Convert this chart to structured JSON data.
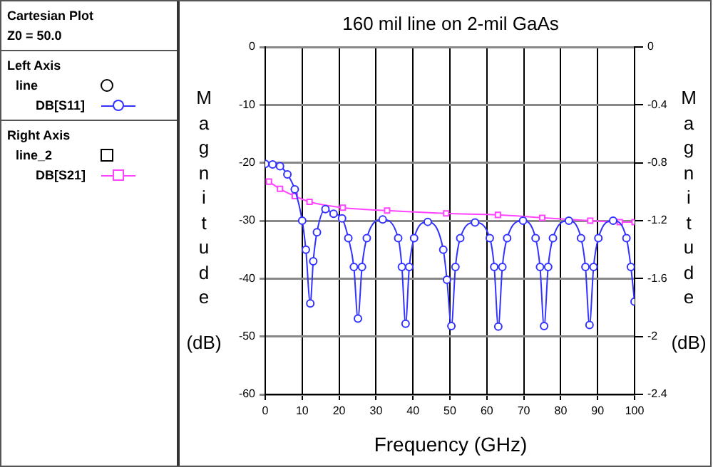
{
  "chart_data": {
    "type": "line",
    "title": "160 mil line on 2-mil GaAs",
    "xlabel": "Frequency (GHz)",
    "ylabel": "Magnitude (dB)",
    "y2label": "Magnitude (dB)",
    "annotations": [
      "Cartesian Plot",
      "Z0 = 50.0",
      "Left Axis",
      "line",
      "Right Axis",
      "line_2"
    ],
    "xlim": [
      0,
      100
    ],
    "xticks": [
      0,
      10,
      20,
      30,
      40,
      50,
      60,
      70,
      80,
      90,
      100
    ],
    "ylim": [
      -60,
      0
    ],
    "yticks": [
      0,
      -10,
      -20,
      -30,
      -40,
      -50,
      -60
    ],
    "y2lim": [
      -2.4,
      0
    ],
    "y2ticks": [
      0,
      -0.4,
      -0.8,
      -1.2,
      -1.6,
      -2,
      -2.4
    ],
    "grid": true,
    "legend": "left",
    "series": [
      {
        "name": "DB[S11]",
        "color": "#3333ff",
        "marker": "circle",
        "x": [
          0,
          2,
          4,
          6,
          8,
          10,
          11,
          12.2,
          13,
          14,
          16.3,
          18.5,
          20.8,
          22.5,
          24,
          25.1,
          26.2,
          27.5,
          31.8,
          36,
          37,
          38,
          39,
          40.3,
          44,
          48.2,
          49.2,
          50.4,
          51.5,
          52.8,
          56.8,
          60.8,
          62,
          63.1,
          64.2,
          65.5,
          69.8,
          73.2,
          74.4,
          75.5,
          76.6,
          77.9,
          82.2,
          85.5,
          86.7,
          87.8,
          88.9,
          90.2,
          94.2,
          97.8,
          99,
          100
        ],
        "values": [
          -20.2,
          -20.3,
          -20.6,
          -22,
          -24.6,
          -30,
          -35,
          -44.3,
          -37,
          -32,
          -28,
          -28.8,
          -29.6,
          -33,
          -38,
          -46.9,
          -38,
          -33,
          -29.8,
          -33,
          -38,
          -47.8,
          -38,
          -33,
          -30.2,
          -35,
          -40.2,
          -48.2,
          -38,
          -33,
          -30.3,
          -33,
          -38,
          -48.3,
          -38,
          -33,
          -30,
          -33,
          -38,
          -48.2,
          -38,
          -33,
          -30,
          -33,
          -38,
          -48,
          -38,
          -33,
          -30,
          -33,
          -38,
          -44
        ]
      },
      {
        "name": "DB[S21]",
        "color": "#ff44ff",
        "marker": "square",
        "axis": "y2",
        "x": [
          1,
          4,
          8,
          12,
          21,
          33,
          49,
          63,
          75,
          88,
          96,
          100
        ],
        "values": [
          -0.93,
          -0.98,
          -1.03,
          -1.07,
          -1.11,
          -1.13,
          -1.15,
          -1.16,
          -1.18,
          -1.2,
          -1.21,
          -1.21
        ]
      }
    ]
  }
}
